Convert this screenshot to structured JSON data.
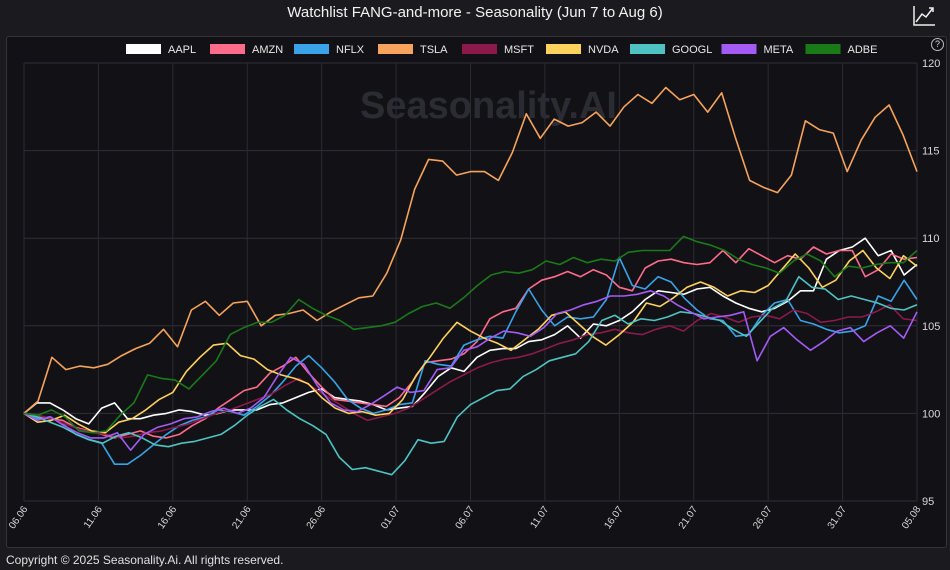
{
  "page": {
    "title": "Watchlist FANG-and-more - Seasonality (Jun 7 to Aug 6)",
    "watermark": "Seasonality.AI",
    "help_label": "?",
    "copyright": "Copyright © 2025 Seasonality.Ai. All rights reserved."
  },
  "chart_data": {
    "type": "line",
    "title": "Watchlist FANG-and-more - Seasonality (Jun 7 to Aug 6)",
    "xlabel": "",
    "ylabel": "",
    "ylim": [
      95,
      120
    ],
    "yticks": [
      95,
      100,
      105,
      110,
      115,
      120
    ],
    "x_tick_labels": [
      "06.06",
      "11.06",
      "16.06",
      "21.06",
      "26.06",
      "01.07",
      "06.07",
      "11.07",
      "16.07",
      "21.07",
      "26.07",
      "31.07",
      "05.08"
    ],
    "x_tick_index": [
      0,
      5,
      10,
      15,
      20,
      25,
      30,
      35,
      40,
      45,
      50,
      55,
      60
    ],
    "grid": true,
    "legend_position": "top",
    "series": [
      {
        "name": "AAPL",
        "color": "#ffffff",
        "values": [
          100,
          100.6,
          100.6,
          100.2,
          99.7,
          99.4,
          100.3,
          100.6,
          99.7,
          99.7,
          99.9,
          100,
          100.2,
          100.1,
          99.9,
          100,
          100.2,
          100.2,
          100.2,
          100.5,
          100.6,
          100.9,
          101.2,
          101.4,
          100.9,
          100.8,
          100.7,
          100.5,
          100.2,
          100.3,
          100.4,
          101.2,
          102.1,
          102.6,
          102.4,
          103.2,
          103.6,
          103.7,
          103.7,
          104.1,
          104.2,
          104.5,
          105.0,
          104.3,
          105.1,
          105.0,
          105.3,
          105.8,
          106.5,
          107.0,
          106.9,
          106.8,
          107.1,
          107.2,
          106.7,
          106.3,
          106.0,
          105.8,
          106.0,
          106.4,
          107.0,
          107.0,
          108.8,
          109.3,
          109.5,
          110.0,
          109.0,
          109.3,
          107.9,
          108.5
        ]
      },
      {
        "name": "AMZN",
        "color": "#ff6b8b",
        "values": [
          100,
          99.8,
          99.7,
          99.6,
          99.2,
          99.0,
          98.8,
          98.6,
          98.8,
          99.0,
          98.7,
          98.6,
          98.8,
          99.3,
          99.7,
          100.3,
          100.8,
          101.3,
          101.5,
          102.3,
          102.7,
          103.2,
          102.3,
          101.5,
          100.8,
          100.7,
          100.6,
          100.5,
          100.4,
          100.9,
          101.8,
          102.9,
          103.0,
          103.1,
          103.4,
          104.1,
          105.4,
          105.8,
          106.0,
          107.1,
          107.6,
          107.8,
          108.1,
          107.8,
          108.2,
          107.9,
          107.2,
          107.0,
          108.3,
          108.7,
          108.8,
          108.6,
          108.5,
          108.6,
          109.3,
          108.6,
          109.4,
          109.0,
          108.6,
          109.0,
          108.8,
          109.5,
          109.1,
          109.3,
          109.3,
          107.8,
          108.2,
          109.1,
          108.8,
          108.9
        ]
      },
      {
        "name": "NFLX",
        "color": "#3aa2e8",
        "values": [
          100,
          99.7,
          99.8,
          99.4,
          98.8,
          98.5,
          98.3,
          97.1,
          97.1,
          97.6,
          98.2,
          98.8,
          99.3,
          99.6,
          99.8,
          100.2,
          100.1,
          99.9,
          100.4,
          101.0,
          101.8,
          102.7,
          103.3,
          102.6,
          101.8,
          100.8,
          100.3,
          100.0,
          100.2,
          100.5,
          100.6,
          103.0,
          102.8,
          102.7,
          103.9,
          104.2,
          104.4,
          104.3,
          105.8,
          107.1,
          105.9,
          105.0,
          105.5,
          105.4,
          105.5,
          106.5,
          108.9,
          107.3,
          107.1,
          107.8,
          107.5,
          106.6,
          105.9,
          105.4,
          105.3,
          104.4,
          104.5,
          105.6,
          106.3,
          106.5,
          105.3,
          105.1,
          104.8,
          104.6,
          104.7,
          105.0,
          106.7,
          106.4,
          107.6,
          106.5
        ]
      },
      {
        "name": "TSLA",
        "color": "#f7a35c",
        "values": [
          100,
          100.7,
          103.2,
          102.5,
          102.7,
          102.6,
          102.8,
          103.3,
          103.7,
          104.0,
          104.8,
          103.8,
          105.9,
          106.4,
          105.6,
          106.3,
          106.4,
          105.0,
          105.6,
          105.7,
          105.9,
          105.3,
          105.8,
          106.2,
          106.6,
          106.7,
          108.0,
          109.9,
          112.8,
          114.5,
          114.4,
          113.6,
          113.8,
          113.8,
          113.3,
          114.9,
          117.1,
          115.7,
          116.8,
          116.4,
          116.6,
          117.2,
          116.4,
          117.5,
          118.2,
          117.7,
          118.6,
          117.9,
          118.2,
          117.2,
          118.3,
          115.7,
          113.3,
          112.9,
          112.6,
          113.6,
          116.7,
          116.2,
          116.0,
          113.8,
          115.6,
          116.9,
          117.6,
          115.9,
          113.8
        ]
      },
      {
        "name": "MSFT",
        "color": "#8b1a4a",
        "values": [
          100,
          99.9,
          99.7,
          99.4,
          99.1,
          98.9,
          98.8,
          98.6,
          98.7,
          98.9,
          99.0,
          99.2,
          99.4,
          99.7,
          100.0,
          100.2,
          100.5,
          100.8,
          101.1,
          101.6,
          102.0,
          101.5,
          101.0,
          100.5,
          100.0,
          99.6,
          99.8,
          100.0,
          100.3,
          100.8,
          101.3,
          101.8,
          102.2,
          102.6,
          102.9,
          103.1,
          103.2,
          103.4,
          103.7,
          104.0,
          104.2,
          104.5,
          104.6,
          104.8,
          104.6,
          104.5,
          104.8,
          105.0,
          104.7,
          105.3,
          105.7,
          105.5,
          105.2,
          105.5,
          105.6,
          105.4,
          105.9,
          105.7,
          105.2,
          105.3,
          105.5,
          105.5,
          105.8,
          106.2,
          105.4,
          105.3
        ]
      },
      {
        "name": "NVDA",
        "color": "#ffd25e",
        "values": [
          100,
          99.5,
          99.6,
          99.9,
          99.4,
          99.0,
          98.9,
          99.5,
          99.7,
          100.2,
          100.8,
          101.2,
          102.4,
          103.2,
          103.9,
          104.0,
          103.3,
          103.1,
          102.5,
          102.2,
          102.0,
          101.7,
          100.9,
          100.3,
          100.0,
          100.1,
          99.9,
          100.0,
          100.8,
          102.2,
          103.2,
          104.3,
          105.2,
          104.7,
          104.3,
          104.0,
          103.6,
          104.2,
          104.8,
          105.6,
          105.8,
          105.1,
          104.4,
          103.9,
          104.5,
          105.2,
          106.3,
          106.1,
          106.6,
          107.2,
          107.5,
          107.2,
          106.7,
          107.0,
          106.9,
          107.3,
          108.2,
          109.1,
          108.3,
          107.2,
          107.6,
          108.7,
          109.3,
          108.3,
          107.7,
          109.0,
          108.4
        ]
      },
      {
        "name": "GOOGL",
        "color": "#4fc3c3",
        "values": [
          100,
          99.8,
          99.5,
          99.2,
          98.8,
          98.5,
          98.3,
          98.7,
          98.9,
          98.6,
          98.2,
          98.1,
          98.3,
          98.4,
          98.6,
          98.8,
          99.3,
          99.9,
          100.4,
          100.8,
          100.2,
          99.7,
          99.3,
          98.8,
          97.5,
          96.8,
          96.9,
          96.7,
          96.5,
          97.3,
          98.5,
          98.3,
          98.4,
          99.8,
          100.5,
          100.9,
          101.3,
          101.4,
          102.1,
          102.5,
          103.0,
          103.2,
          103.4,
          104.1,
          105.3,
          105.6,
          105.1,
          105.4,
          105.3,
          105.5,
          105.8,
          105.7,
          105.5,
          105.3,
          104.8,
          104.4,
          105.2,
          106.0,
          106.4,
          107.8,
          107.2,
          107.1,
          106.5,
          106.7,
          106.5,
          106.3,
          106.0,
          105.9,
          106.2
        ]
      },
      {
        "name": "META",
        "color": "#a45bf5",
        "values": [
          100,
          99.6,
          99.8,
          99.3,
          98.9,
          98.6,
          98.6,
          98.9,
          97.9,
          98.8,
          99.2,
          99.4,
          99.7,
          99.8,
          100.1,
          100.3,
          100.0,
          100.3,
          100.9,
          102.1,
          103.2,
          102.8,
          101.6,
          100.6,
          100.2,
          100.1,
          100.5,
          101.0,
          101.5,
          101.2,
          101.3,
          102.5,
          102.6,
          103.6,
          103.8,
          104.3,
          104.7,
          104.6,
          104.4,
          104.9,
          105.7,
          105.9,
          106.2,
          106.4,
          106.7,
          106.7,
          106.8,
          107.0,
          106.7,
          106.2,
          105.8,
          105.4,
          105.5,
          105.6,
          105.8,
          103.0,
          104.4,
          104.9,
          104.2,
          103.6,
          104.1,
          104.7,
          104.9,
          104.1,
          104.6,
          105.0,
          104.3,
          105.8
        ]
      },
      {
        "name": "ADBE",
        "color": "#1a7a1a",
        "values": [
          100,
          99.9,
          100.2,
          99.8,
          99.0,
          98.9,
          99.0,
          99.9,
          100.6,
          102.2,
          102.0,
          101.9,
          101.4,
          102.2,
          103.0,
          104.5,
          104.9,
          105.2,
          105.2,
          105.6,
          106.5,
          106.0,
          105.6,
          105.3,
          104.8,
          104.9,
          105.0,
          105.2,
          105.7,
          106.1,
          106.3,
          106.0,
          106.6,
          107.3,
          107.9,
          108.1,
          108.0,
          108.2,
          108.7,
          108.5,
          108.9,
          108.6,
          108.8,
          108.7,
          109.2,
          109.3,
          109.3,
          109.3,
          110.1,
          109.8,
          109.6,
          109.3,
          108.8,
          108.5,
          108.3,
          108.0,
          108.7,
          109.1,
          108.7,
          107.8,
          108.4,
          108.3,
          108.5,
          108.6,
          108.6,
          109.3
        ]
      }
    ]
  }
}
